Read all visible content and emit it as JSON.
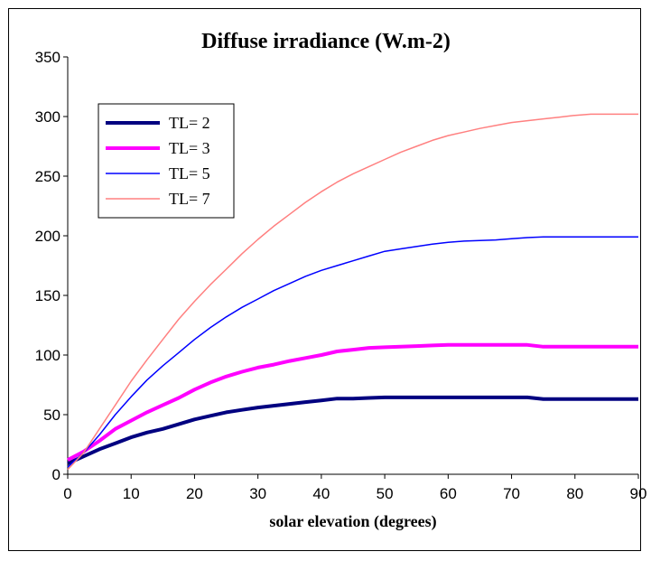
{
  "chart_data": {
    "type": "line",
    "title": "Diffuse irradiance (W.m-2)",
    "xlabel": "solar elevation (degrees)",
    "ylabel": "",
    "xlim": [
      0,
      90
    ],
    "ylim": [
      0,
      350
    ],
    "xticks": [
      0,
      10,
      20,
      30,
      40,
      50,
      60,
      70,
      80,
      90
    ],
    "yticks": [
      0,
      50,
      100,
      150,
      200,
      250,
      300,
      350
    ],
    "grid": false,
    "legend_position": "top-left",
    "series": [
      {
        "name": "TL= 2",
        "color": "#000080",
        "width": 4,
        "x": [
          0,
          2.5,
          5,
          7.5,
          10,
          12.5,
          15,
          17.5,
          20,
          22.5,
          25,
          27.5,
          30,
          32.5,
          35,
          37.5,
          40,
          42.5,
          45,
          47.5,
          50,
          52.5,
          55,
          57.5,
          60,
          62.5,
          65,
          67.5,
          70,
          72.5,
          75,
          77.5,
          80,
          82.5,
          85,
          87.5,
          90
        ],
        "y": [
          9,
          15,
          21,
          26,
          31,
          35,
          38,
          42,
          46,
          49,
          52,
          54,
          56,
          57.5,
          59,
          60.5,
          62,
          63.5,
          63.5,
          64,
          64.5,
          64.5,
          64.5,
          64.5,
          64.5,
          64.5,
          64.5,
          64.5,
          64.5,
          64.5,
          63,
          63,
          63,
          63,
          63,
          63,
          63
        ]
      },
      {
        "name": "TL= 3",
        "color": "#ff00ff",
        "width": 4,
        "x": [
          0,
          2.5,
          5,
          7.5,
          10,
          12.5,
          15,
          17.5,
          20,
          22.5,
          25,
          27.5,
          30,
          32.5,
          35,
          37.5,
          40,
          42.5,
          45,
          47.5,
          50,
          52.5,
          55,
          57.5,
          60,
          62.5,
          65,
          67.5,
          70,
          72.5,
          75,
          77.5,
          80,
          82.5,
          85,
          87.5,
          90
        ],
        "y": [
          12,
          19,
          28,
          38,
          45,
          52,
          58,
          64,
          71,
          77,
          82,
          86,
          89.5,
          92,
          95,
          97.5,
          100,
          103,
          104.5,
          106,
          106.5,
          107,
          107.5,
          108,
          108.5,
          108.5,
          108.5,
          108.5,
          108.5,
          108.5,
          107,
          107,
          107,
          107,
          107,
          107,
          107
        ]
      },
      {
        "name": "TL= 5",
        "color": "#0000ff",
        "width": 1.5,
        "x": [
          0,
          2.5,
          5,
          7.5,
          10,
          12.5,
          15,
          17.5,
          20,
          22.5,
          25,
          27.5,
          30,
          32.5,
          35,
          37.5,
          40,
          42.5,
          45,
          47.5,
          50,
          52.5,
          55,
          57.5,
          60,
          62.5,
          65,
          67.5,
          70,
          72.5,
          75,
          77.5,
          80,
          82.5,
          85,
          87.5,
          90
        ],
        "y": [
          6,
          18,
          33,
          50,
          65,
          79,
          91,
          102,
          113,
          123,
          132,
          140,
          147,
          154,
          160,
          166,
          171,
          175,
          179,
          183,
          187,
          189,
          191,
          193,
          194.5,
          195.5,
          196,
          196.5,
          197.5,
          198.5,
          199,
          199,
          199,
          199,
          199,
          199,
          199
        ]
      },
      {
        "name": "TL= 7",
        "color": "#ff8080",
        "width": 1.5,
        "x": [
          0,
          2.5,
          5,
          7.5,
          10,
          12.5,
          15,
          17.5,
          20,
          22.5,
          25,
          27.5,
          30,
          32.5,
          35,
          37.5,
          40,
          42.5,
          45,
          47.5,
          50,
          52.5,
          55,
          57.5,
          60,
          62.5,
          65,
          67.5,
          70,
          72.5,
          75,
          77.5,
          80,
          82.5,
          85,
          87.5,
          90
        ],
        "y": [
          4,
          18,
          38,
          58,
          78,
          96,
          113,
          130,
          145,
          159,
          172,
          185,
          197,
          208,
          218,
          228,
          237,
          245,
          252,
          258,
          264,
          270,
          275,
          280,
          284,
          287,
          290,
          292.5,
          295,
          296.5,
          298,
          299.5,
          301,
          302,
          302,
          302,
          302
        ]
      }
    ]
  }
}
